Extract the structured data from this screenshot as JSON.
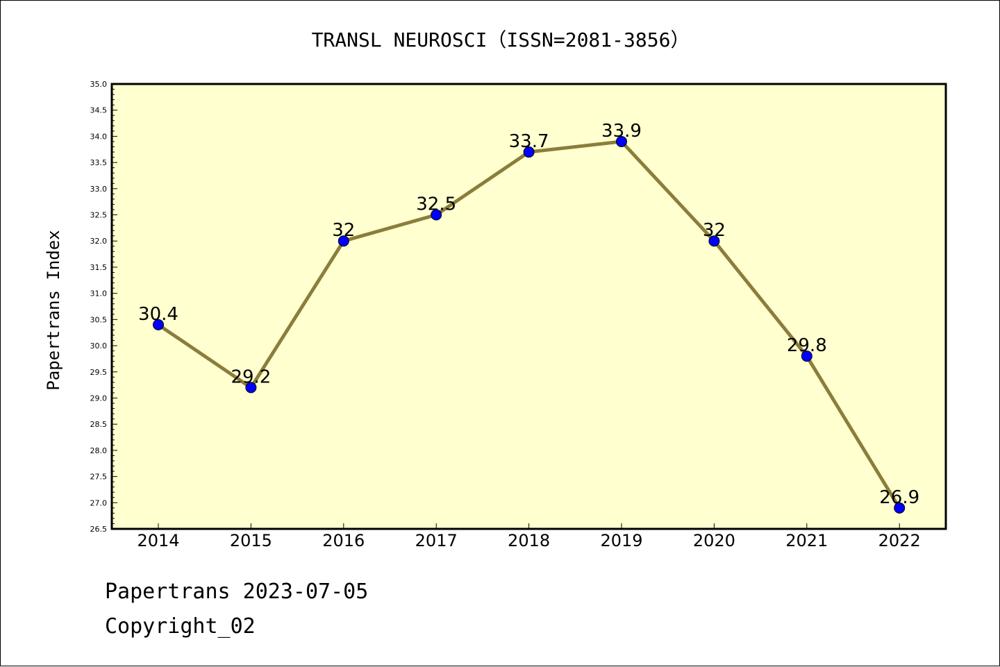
{
  "chart_data": {
    "type": "line",
    "title": "TRANSL NEUROSCI（ISSN=2081-3856）",
    "ylabel": "Papertrans Index",
    "xlabel": "",
    "x": [
      "2014",
      "2015",
      "2016",
      "2017",
      "2018",
      "2019",
      "2020",
      "2021",
      "2022"
    ],
    "series": [
      {
        "values": [
          30.4,
          29.2,
          32.0,
          32.5,
          33.7,
          33.9,
          32.0,
          29.8,
          26.9
        ],
        "labels": [
          "30.4",
          "29.2",
          "32",
          "32.5",
          "33.7",
          "33.9",
          "32",
          "29.8",
          "26.9"
        ]
      }
    ],
    "ylim": [
      26.5,
      35.0
    ],
    "yticks": [
      "26.5",
      "27.0",
      "27.5",
      "28.0",
      "28.5",
      "29.0",
      "29.5",
      "30.0",
      "30.5",
      "31.0",
      "31.5",
      "32.0",
      "32.5",
      "33.0",
      "33.5",
      "34.0",
      "34.5",
      "35.0"
    ],
    "grid": false,
    "colors": {
      "plot_background": "#ffffd0",
      "line": "#8b7d3a",
      "marker": "#0000ff"
    }
  },
  "footer": {
    "date_line": "Papertrans 2023-07-05",
    "copyright": "Copyright_02"
  }
}
